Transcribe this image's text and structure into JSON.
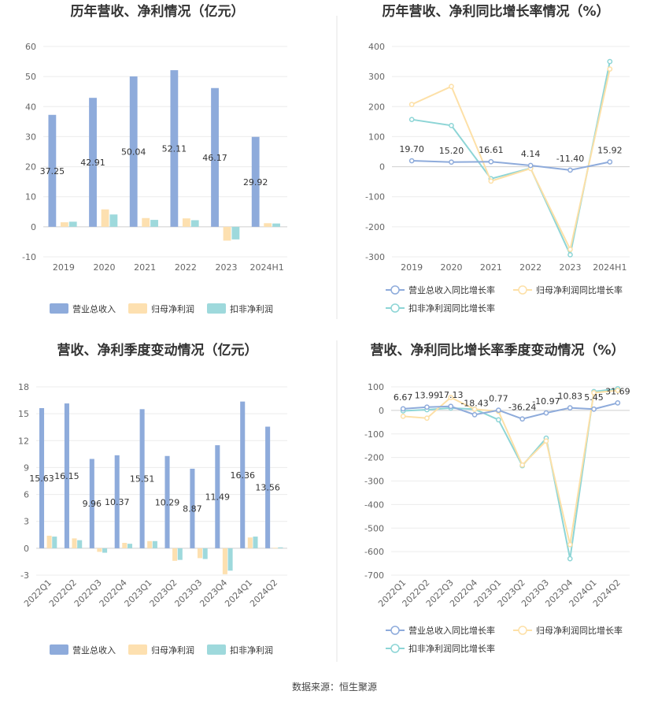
{
  "source_text": "数据来源：恒生聚源",
  "colors": {
    "revenue": "#8eabdb",
    "net_profit": "#fde0b0",
    "deducted_profit": "#9ed9dc",
    "revenue_line": "#8eabdb",
    "net_line": "#fde0a7",
    "deducted_line": "#8dd5d6"
  },
  "chart_data": [
    {
      "type": "bar",
      "title": "历年营收、净利情况（亿元）",
      "categories": [
        "2019",
        "2020",
        "2021",
        "2022",
        "2023",
        "2024H1"
      ],
      "ylim": [
        -10,
        60
      ],
      "yticks": [
        -10,
        0,
        10,
        20,
        30,
        40,
        50,
        60
      ],
      "series": [
        {
          "name": "营业总收入",
          "values": [
            37.25,
            42.91,
            50.04,
            52.11,
            46.17,
            29.92
          ],
          "labels": [
            "37.25",
            "42.91",
            "50.04",
            "52.11",
            "46.17",
            "29.92"
          ]
        },
        {
          "name": "归母净利润",
          "values": [
            1.5,
            5.8,
            2.9,
            2.8,
            -4.6,
            1.2
          ]
        },
        {
          "name": "扣非净利润",
          "values": [
            1.7,
            4.1,
            2.3,
            2.2,
            -4.2,
            1.1
          ]
        }
      ],
      "legend_position": "bottom"
    },
    {
      "type": "line",
      "title": "历年营收、净利同比增长率情况（%）",
      "categories": [
        "2019",
        "2020",
        "2021",
        "2022",
        "2023",
        "2024H1"
      ],
      "ylim": [
        -300,
        400
      ],
      "yticks": [
        -300,
        -200,
        -100,
        0,
        100,
        200,
        300,
        400
      ],
      "series": [
        {
          "name": "营业总收入同比增长率",
          "values": [
            19.7,
            15.2,
            16.61,
            4.14,
            -11.4,
            15.92
          ],
          "labels": [
            "19.70",
            "15.20",
            "16.61",
            "4.14",
            "-11.40",
            "15.92"
          ]
        },
        {
          "name": "归母净利润同比增长率",
          "values": [
            207,
            267,
            -48,
            -6,
            -275,
            325
          ]
        },
        {
          "name": "扣非净利润同比增长率",
          "values": [
            157,
            137,
            -40,
            -5,
            -293,
            350
          ]
        }
      ],
      "legend_position": "bottom"
    },
    {
      "type": "bar",
      "title": "营收、净利季度变动情况（亿元）",
      "categories": [
        "2022Q1",
        "2022Q2",
        "2022Q3",
        "2022Q4",
        "2023Q1",
        "2023Q2",
        "2023Q3",
        "2023Q4",
        "2024Q1",
        "2024Q2"
      ],
      "ylim": [
        -3,
        18
      ],
      "yticks": [
        -3,
        0,
        3,
        6,
        9,
        12,
        15,
        18
      ],
      "series": [
        {
          "name": "营业总收入",
          "values": [
            15.63,
            16.15,
            9.96,
            10.37,
            15.51,
            10.29,
            8.87,
            11.49,
            16.36,
            13.56
          ],
          "labels": [
            "15.63",
            "16.15",
            "9.96",
            "10.37",
            "15.51",
            "10.29",
            "8.87",
            "11.49",
            "16.36",
            "13.56"
          ]
        },
        {
          "name": "归母净利润",
          "values": [
            1.4,
            1.1,
            -0.4,
            0.6,
            0.8,
            -1.4,
            -1.1,
            -2.9,
            1.2,
            0.05
          ]
        },
        {
          "name": "扣非净利润",
          "values": [
            1.3,
            0.9,
            -0.5,
            0.5,
            0.8,
            -1.3,
            -1.2,
            -2.5,
            1.3,
            0.1
          ]
        }
      ],
      "legend_position": "bottom"
    },
    {
      "type": "line",
      "title": "营收、净利同比增长率季度变动情况（%）",
      "categories": [
        "2022Q1",
        "2022Q2",
        "2022Q3",
        "2022Q4",
        "2023Q1",
        "2023Q2",
        "2023Q3",
        "2023Q4",
        "2024Q1",
        "2024Q2"
      ],
      "ylim": [
        -700,
        100
      ],
      "yticks": [
        -700,
        -600,
        -500,
        -400,
        -300,
        -200,
        -100,
        0,
        100
      ],
      "series": [
        {
          "name": "营业总收入同比增长率",
          "values": [
            6.67,
            13.99,
            17.13,
            -18.43,
            0.77,
            -36.24,
            -10.97,
            10.83,
            5.45,
            31.69
          ],
          "labels": [
            "6.67",
            "13.99",
            "17.13",
            "-18.43",
            "0.77",
            "-36.24",
            "-10.97",
            "10.83",
            "5.45",
            "31.69"
          ]
        },
        {
          "name": "归母净利润同比增长率",
          "values": [
            -25,
            -33,
            55,
            5,
            -4,
            -232,
            -130,
            -570,
            75,
            85
          ]
        },
        {
          "name": "扣非净利润同比增长率",
          "values": [
            -2,
            3,
            10,
            5,
            -40,
            -235,
            -118,
            -630,
            80,
            92
          ]
        }
      ],
      "legend_position": "bottom"
    }
  ]
}
